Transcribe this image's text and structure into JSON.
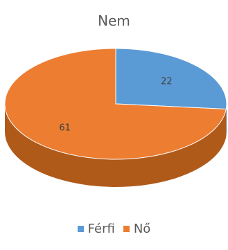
{
  "chart_data": {
    "type": "pie",
    "title": "Nem",
    "categories": [
      "Férfi",
      "Nő"
    ],
    "values": [
      22,
      61
    ],
    "colors": [
      "#5B9BD5",
      "#ED7D31"
    ],
    "side_colors": [
      "#3F7AB0",
      "#B05A1A"
    ],
    "style": "3d",
    "legend_position": "bottom",
    "data_labels": [
      "22",
      "61"
    ]
  }
}
